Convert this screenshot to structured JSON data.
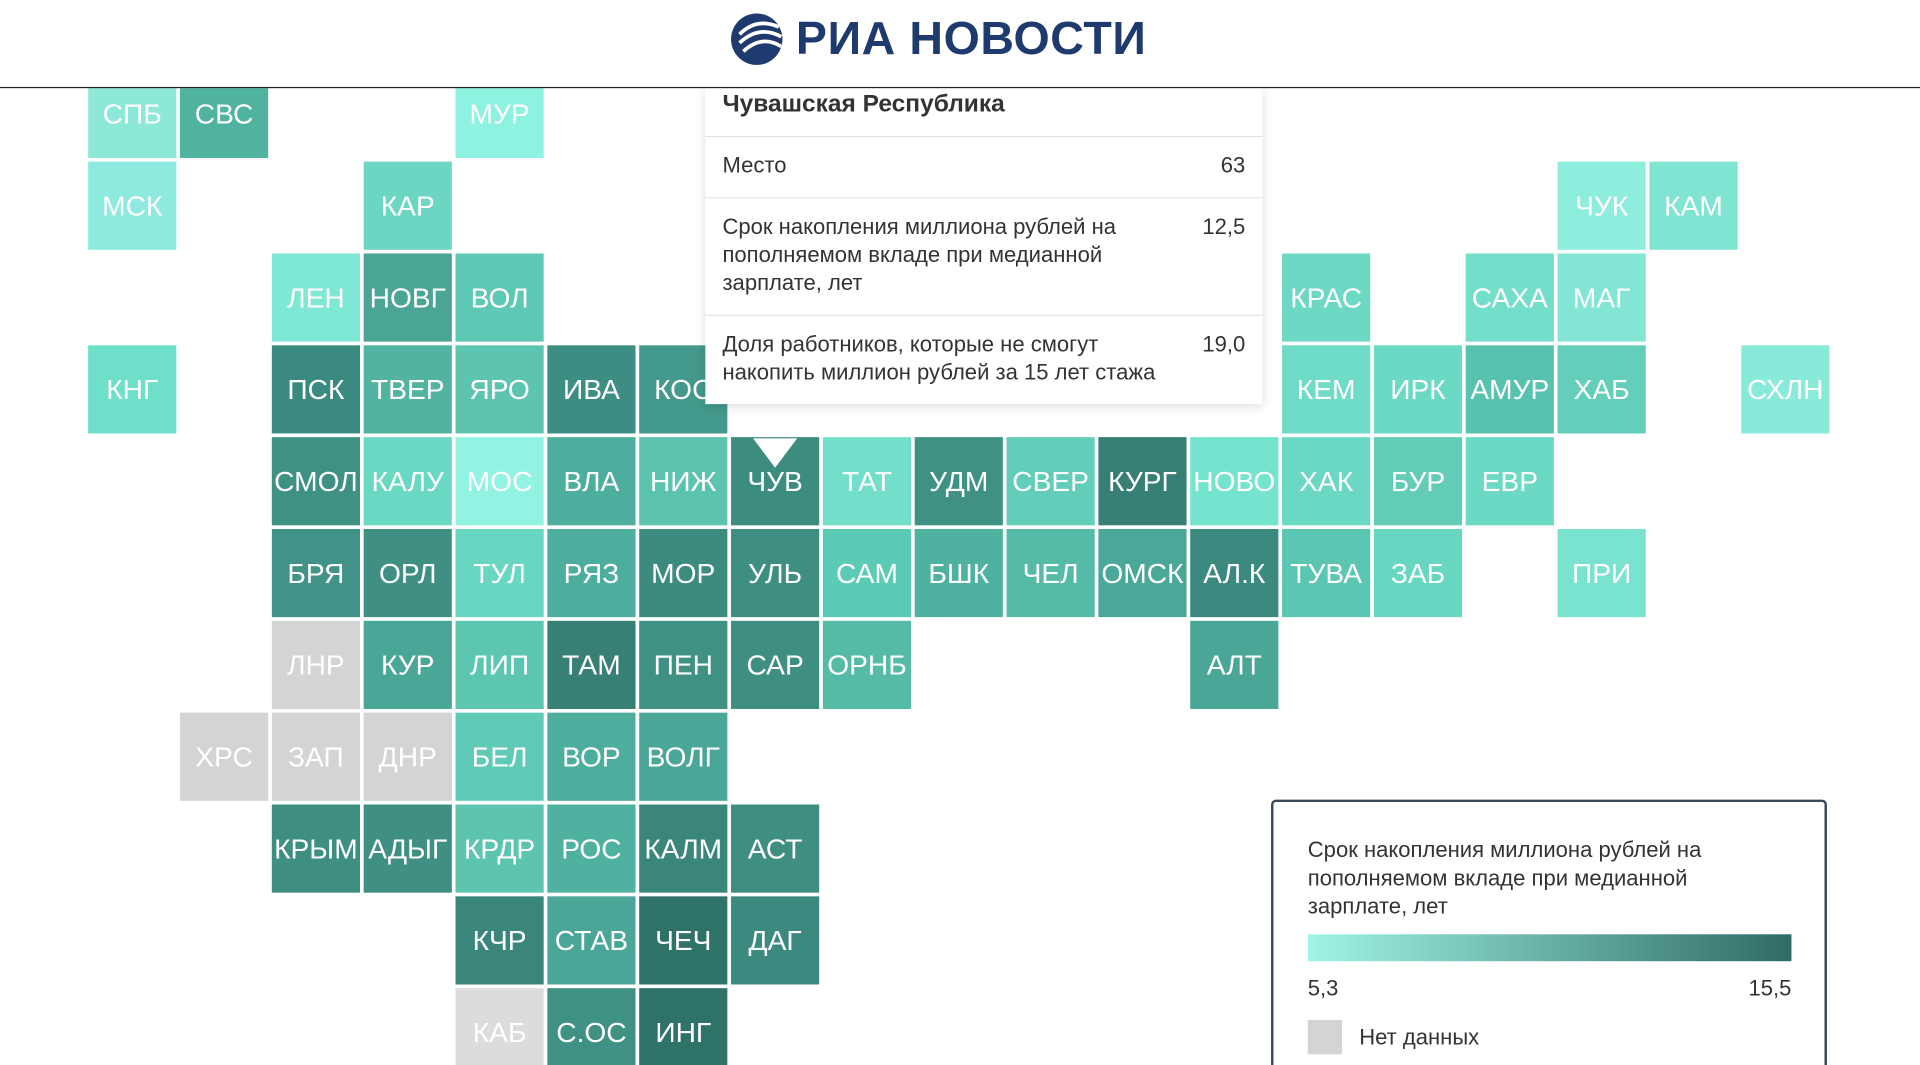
{
  "header": {
    "logo_text": "РИА НОВОСТИ"
  },
  "map": {
    "rows": [
      [
        {
          "label": "СПБ",
          "color": "#8de8d8"
        },
        {
          "label": "СВС",
          "color": "#4fb3a0"
        },
        null,
        null,
        {
          "label": "МУР",
          "color": "#8ef2e0"
        }
      ],
      [
        {
          "label": "МСК",
          "color": "#8eeadf"
        },
        null,
        null,
        {
          "label": "КАР",
          "color": "#6dd6c3"
        },
        null,
        null,
        null,
        null,
        null,
        null,
        null,
        null,
        null,
        null,
        null,
        null,
        {
          "label": "ЧУК",
          "color": "#8eeedd"
        },
        {
          "label": "КАМ",
          "color": "#80e4d3"
        }
      ],
      [
        null,
        null,
        {
          "label": "ЛЕН",
          "color": "#7fe8d4"
        },
        {
          "label": "НОВГ",
          "color": "#4aa595"
        },
        {
          "label": "ВОЛ",
          "color": "#5dc8b3"
        },
        null,
        null,
        null,
        null,
        null,
        null,
        null,
        null,
        {
          "label": "КРАС",
          "color": "#6dd9c5"
        },
        null,
        {
          "label": "САХА",
          "color": "#73dfca"
        },
        {
          "label": "МАГ",
          "color": "#83e6d4"
        }
      ],
      [
        {
          "label": "КНГ",
          "color": "#6ee0c9"
        },
        null,
        {
          "label": "ПСК",
          "color": "#3b8a7f"
        },
        {
          "label": "ТВЕР",
          "color": "#52b3a1"
        },
        {
          "label": "ЯРО",
          "color": "#5cc4af"
        },
        {
          "label": "ИВА",
          "color": "#3d8e82"
        },
        {
          "label": "КОС",
          "color": "#43998b"
        },
        null,
        null,
        null,
        null,
        null,
        null,
        {
          "label": "КЕМ",
          "color": "#6fdcc8"
        },
        {
          "label": "ИРК",
          "color": "#6bdac5"
        },
        {
          "label": "АМУР",
          "color": "#57c2ad"
        },
        {
          "label": "ХАБ",
          "color": "#63cfba"
        },
        null,
        {
          "label": "СХЛН",
          "color": "#88ebda"
        }
      ],
      [
        null,
        null,
        {
          "label": "СМОЛ",
          "color": "#3f9184"
        },
        {
          "label": "КАЛУ",
          "color": "#6ad9c3"
        },
        {
          "label": "МОС",
          "color": "#92f3e2"
        },
        {
          "label": "ВЛА",
          "color": "#4eae9d"
        },
        {
          "label": "НИЖ",
          "color": "#5cc3af"
        },
        {
          "label": "ЧУВ",
          "color": "#3d8c80"
        },
        {
          "label": "ТАТ",
          "color": "#73dfca"
        },
        {
          "label": "УДМ",
          "color": "#3f9184"
        },
        {
          "label": "СВЕР",
          "color": "#62cdb8"
        },
        {
          "label": "КУРГ",
          "color": "#377f75"
        },
        {
          "label": "НОВО",
          "color": "#74e4cf"
        },
        {
          "label": "ХАК",
          "color": "#6ad8c3"
        },
        {
          "label": "БУР",
          "color": "#62ccb7"
        },
        {
          "label": "ЕВР",
          "color": "#6cd9c4"
        }
      ],
      [
        null,
        null,
        {
          "label": "БРЯ",
          "color": "#409386"
        },
        {
          "label": "ОРЛ",
          "color": "#3f9083"
        },
        {
          "label": "ТУЛ",
          "color": "#69d6c1"
        },
        {
          "label": "РЯЗ",
          "color": "#4eae9d"
        },
        {
          "label": "МОР",
          "color": "#3c8b7f"
        },
        {
          "label": "УЛЬ",
          "color": "#3e8f82"
        },
        {
          "label": "САМ",
          "color": "#5ccbb5"
        },
        {
          "label": "БШК",
          "color": "#4fb19f"
        },
        {
          "label": "ЧЕЛ",
          "color": "#55bba7"
        },
        {
          "label": "ОМСК",
          "color": "#4aa898"
        },
        {
          "label": "АЛ.К",
          "color": "#3c8a7f"
        },
        {
          "label": "ТУВА",
          "color": "#5bc6b1"
        },
        {
          "label": "ЗАБ",
          "color": "#68d7c1"
        },
        null,
        {
          "label": "ПРИ",
          "color": "#7ae3cf"
        }
      ],
      [
        null,
        null,
        {
          "label": "ЛНР",
          "color": "#d4d4d4"
        },
        {
          "label": "КУР",
          "color": "#4aa797"
        },
        {
          "label": "ЛИП",
          "color": "#5cc6b1"
        },
        {
          "label": "ТАМ",
          "color": "#387f75"
        },
        {
          "label": "ПЕН",
          "color": "#3f9184"
        },
        {
          "label": "САР",
          "color": "#3e8f82"
        },
        {
          "label": "ОРНБ",
          "color": "#55bba7"
        },
        null,
        null,
        null,
        {
          "label": "АЛТ",
          "color": "#4aa797"
        }
      ],
      [
        null,
        {
          "label": "ХРС",
          "color": "#d4d4d4"
        },
        {
          "label": "ЗАП",
          "color": "#d4d4d4"
        },
        {
          "label": "ДНР",
          "color": "#d4d4d4"
        },
        {
          "label": "БЕЛ",
          "color": "#5fcab5"
        },
        {
          "label": "ВОР",
          "color": "#4eae9d"
        },
        {
          "label": "ВОЛГ",
          "color": "#4aa797"
        }
      ],
      [
        null,
        null,
        {
          "label": "КРЫМ",
          "color": "#3e8f82"
        },
        {
          "label": "АДЫГ",
          "color": "#408f83"
        },
        {
          "label": "КРДР",
          "color": "#5cc4af"
        },
        {
          "label": "РОС",
          "color": "#4fb19f"
        },
        {
          "label": "КАЛМ",
          "color": "#3a867b"
        },
        {
          "label": "АСТ",
          "color": "#3e8f82"
        }
      ],
      [
        null,
        null,
        null,
        null,
        {
          "label": "КЧР",
          "color": "#3a867b"
        },
        {
          "label": "СТАВ",
          "color": "#4aa797"
        },
        {
          "label": "ЧЕЧ",
          "color": "#2f7268"
        },
        {
          "label": "ДАГ",
          "color": "#3c8a7f"
        }
      ],
      [
        null,
        null,
        null,
        null,
        {
          "label": "КАБ",
          "color": "#dcdcdc"
        },
        {
          "label": "С.ОС",
          "color": "#3f9184"
        },
        {
          "label": "ИНГ",
          "color": "#2f7268"
        }
      ]
    ]
  },
  "tooltip": {
    "title": "Чувашская Республика",
    "rows": [
      {
        "label": "Место",
        "value": "63"
      },
      {
        "label": "Срок накопления миллиона рублей на пополняемом вкладе при медианной зарплате, лет",
        "value": "12,5"
      },
      {
        "label": "Доля работников, которые не смогут накопить миллион рублей за 15 лет стажа",
        "value": "19,0"
      }
    ]
  },
  "legend": {
    "title": "Срок накопления миллиона рублей на пополняемом вкладе при медианной зарплате, лет",
    "gradient": [
      "#a0f5e6",
      "#2f6b66"
    ],
    "min": "5,3",
    "max": "15,5",
    "no_data_label": "Нет данных",
    "no_data_color": "#d4d4d4"
  }
}
